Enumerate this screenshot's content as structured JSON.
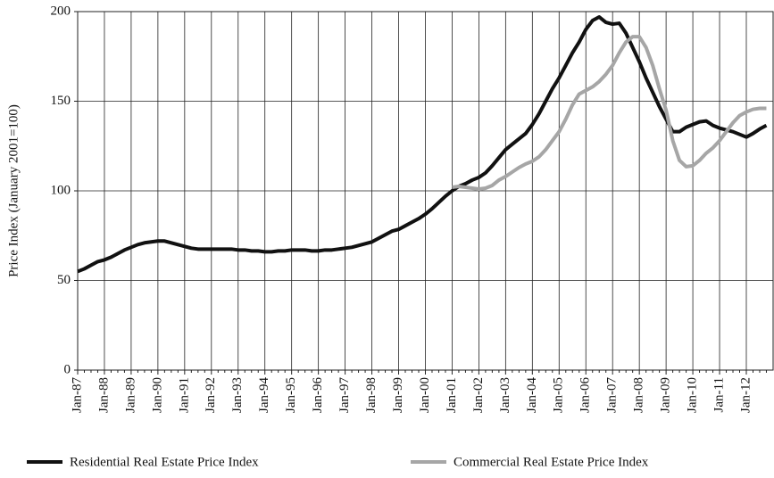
{
  "chart_data": {
    "type": "line",
    "y_label": "Price Index (January 2001=100)",
    "categories": [
      "Jan-87",
      null,
      null,
      null,
      "Jan-88",
      null,
      null,
      null,
      "Jan-89",
      null,
      null,
      null,
      "Jan-90",
      null,
      null,
      null,
      "Jan-91",
      null,
      null,
      null,
      "Jan-92",
      null,
      null,
      null,
      "Jan-93",
      null,
      null,
      null,
      "Jan-94",
      null,
      null,
      null,
      "Jan-95",
      null,
      null,
      null,
      "Jan-96",
      null,
      null,
      null,
      "Jan-97",
      null,
      null,
      null,
      "Jan-98",
      null,
      null,
      null,
      "Jan-99",
      null,
      null,
      null,
      "Jan-00",
      null,
      null,
      null,
      "Jan-01",
      null,
      null,
      null,
      "Jan-02",
      null,
      null,
      null,
      "Jan-03",
      null,
      null,
      null,
      "Jan-04",
      null,
      null,
      null,
      "Jan-05",
      null,
      null,
      null,
      "Jan-06",
      null,
      null,
      null,
      "Jan-07",
      null,
      null,
      null,
      "Jan-08",
      null,
      null,
      null,
      "Jan-09",
      null,
      null,
      null,
      "Jan-10",
      null,
      null,
      null,
      "Jan-11",
      null,
      null,
      null,
      "Jan-12",
      null,
      null,
      null
    ],
    "series": [
      {
        "name": "Residential Real Estate Price Index",
        "color": "#111111",
        "values": [
          55,
          56.5,
          58.5,
          60.5,
          61.5,
          63,
          65,
          67,
          68.5,
          70,
          71,
          71.5,
          72,
          72,
          71,
          70,
          69,
          68,
          67.5,
          67.5,
          67.5,
          67.5,
          67.5,
          67.5,
          67,
          67,
          66.5,
          66.5,
          66,
          66,
          66.5,
          66.5,
          67,
          67,
          67,
          66.5,
          66.5,
          67,
          67,
          67.5,
          68,
          68.5,
          69.5,
          70.5,
          71.5,
          73.5,
          75.5,
          77.5,
          78.5,
          80.5,
          82.5,
          84.5,
          87,
          90,
          93.5,
          97,
          100,
          102.5,
          104,
          106,
          107.5,
          110,
          114,
          118.5,
          123,
          126,
          129,
          132,
          137,
          143,
          150,
          157,
          163,
          170,
          177,
          183,
          190,
          195,
          197,
          194,
          193,
          193.5,
          188,
          180,
          172,
          163,
          155,
          147,
          140,
          133,
          133,
          135.5,
          137,
          138.5,
          139,
          136.5,
          135,
          134,
          133,
          131.5,
          130,
          132,
          134.5,
          136.5
        ]
      },
      {
        "name": "Commercial Real Estate Price Index",
        "color": "#a6a6a6",
        "values": [
          null,
          null,
          null,
          null,
          null,
          null,
          null,
          null,
          null,
          null,
          null,
          null,
          null,
          null,
          null,
          null,
          null,
          null,
          null,
          null,
          null,
          null,
          null,
          null,
          null,
          null,
          null,
          null,
          null,
          null,
          null,
          null,
          null,
          null,
          null,
          null,
          null,
          null,
          null,
          null,
          null,
          null,
          null,
          null,
          null,
          null,
          null,
          null,
          null,
          null,
          null,
          null,
          null,
          null,
          null,
          null,
          102,
          102.5,
          102,
          101.5,
          101,
          101.5,
          103,
          106,
          108,
          110.5,
          113,
          115,
          116.5,
          119,
          123,
          128,
          133,
          140,
          148,
          154,
          156,
          158,
          161,
          165,
          170,
          177,
          183,
          186,
          186,
          180,
          170,
          157,
          145,
          128,
          117,
          113.5,
          114,
          117,
          121,
          124,
          128,
          133,
          138,
          142,
          144,
          145.5,
          146,
          146
        ]
      }
    ],
    "ylim": [
      0,
      200
    ],
    "yticks": [
      0,
      50,
      100,
      150,
      200
    ],
    "grid": true
  }
}
